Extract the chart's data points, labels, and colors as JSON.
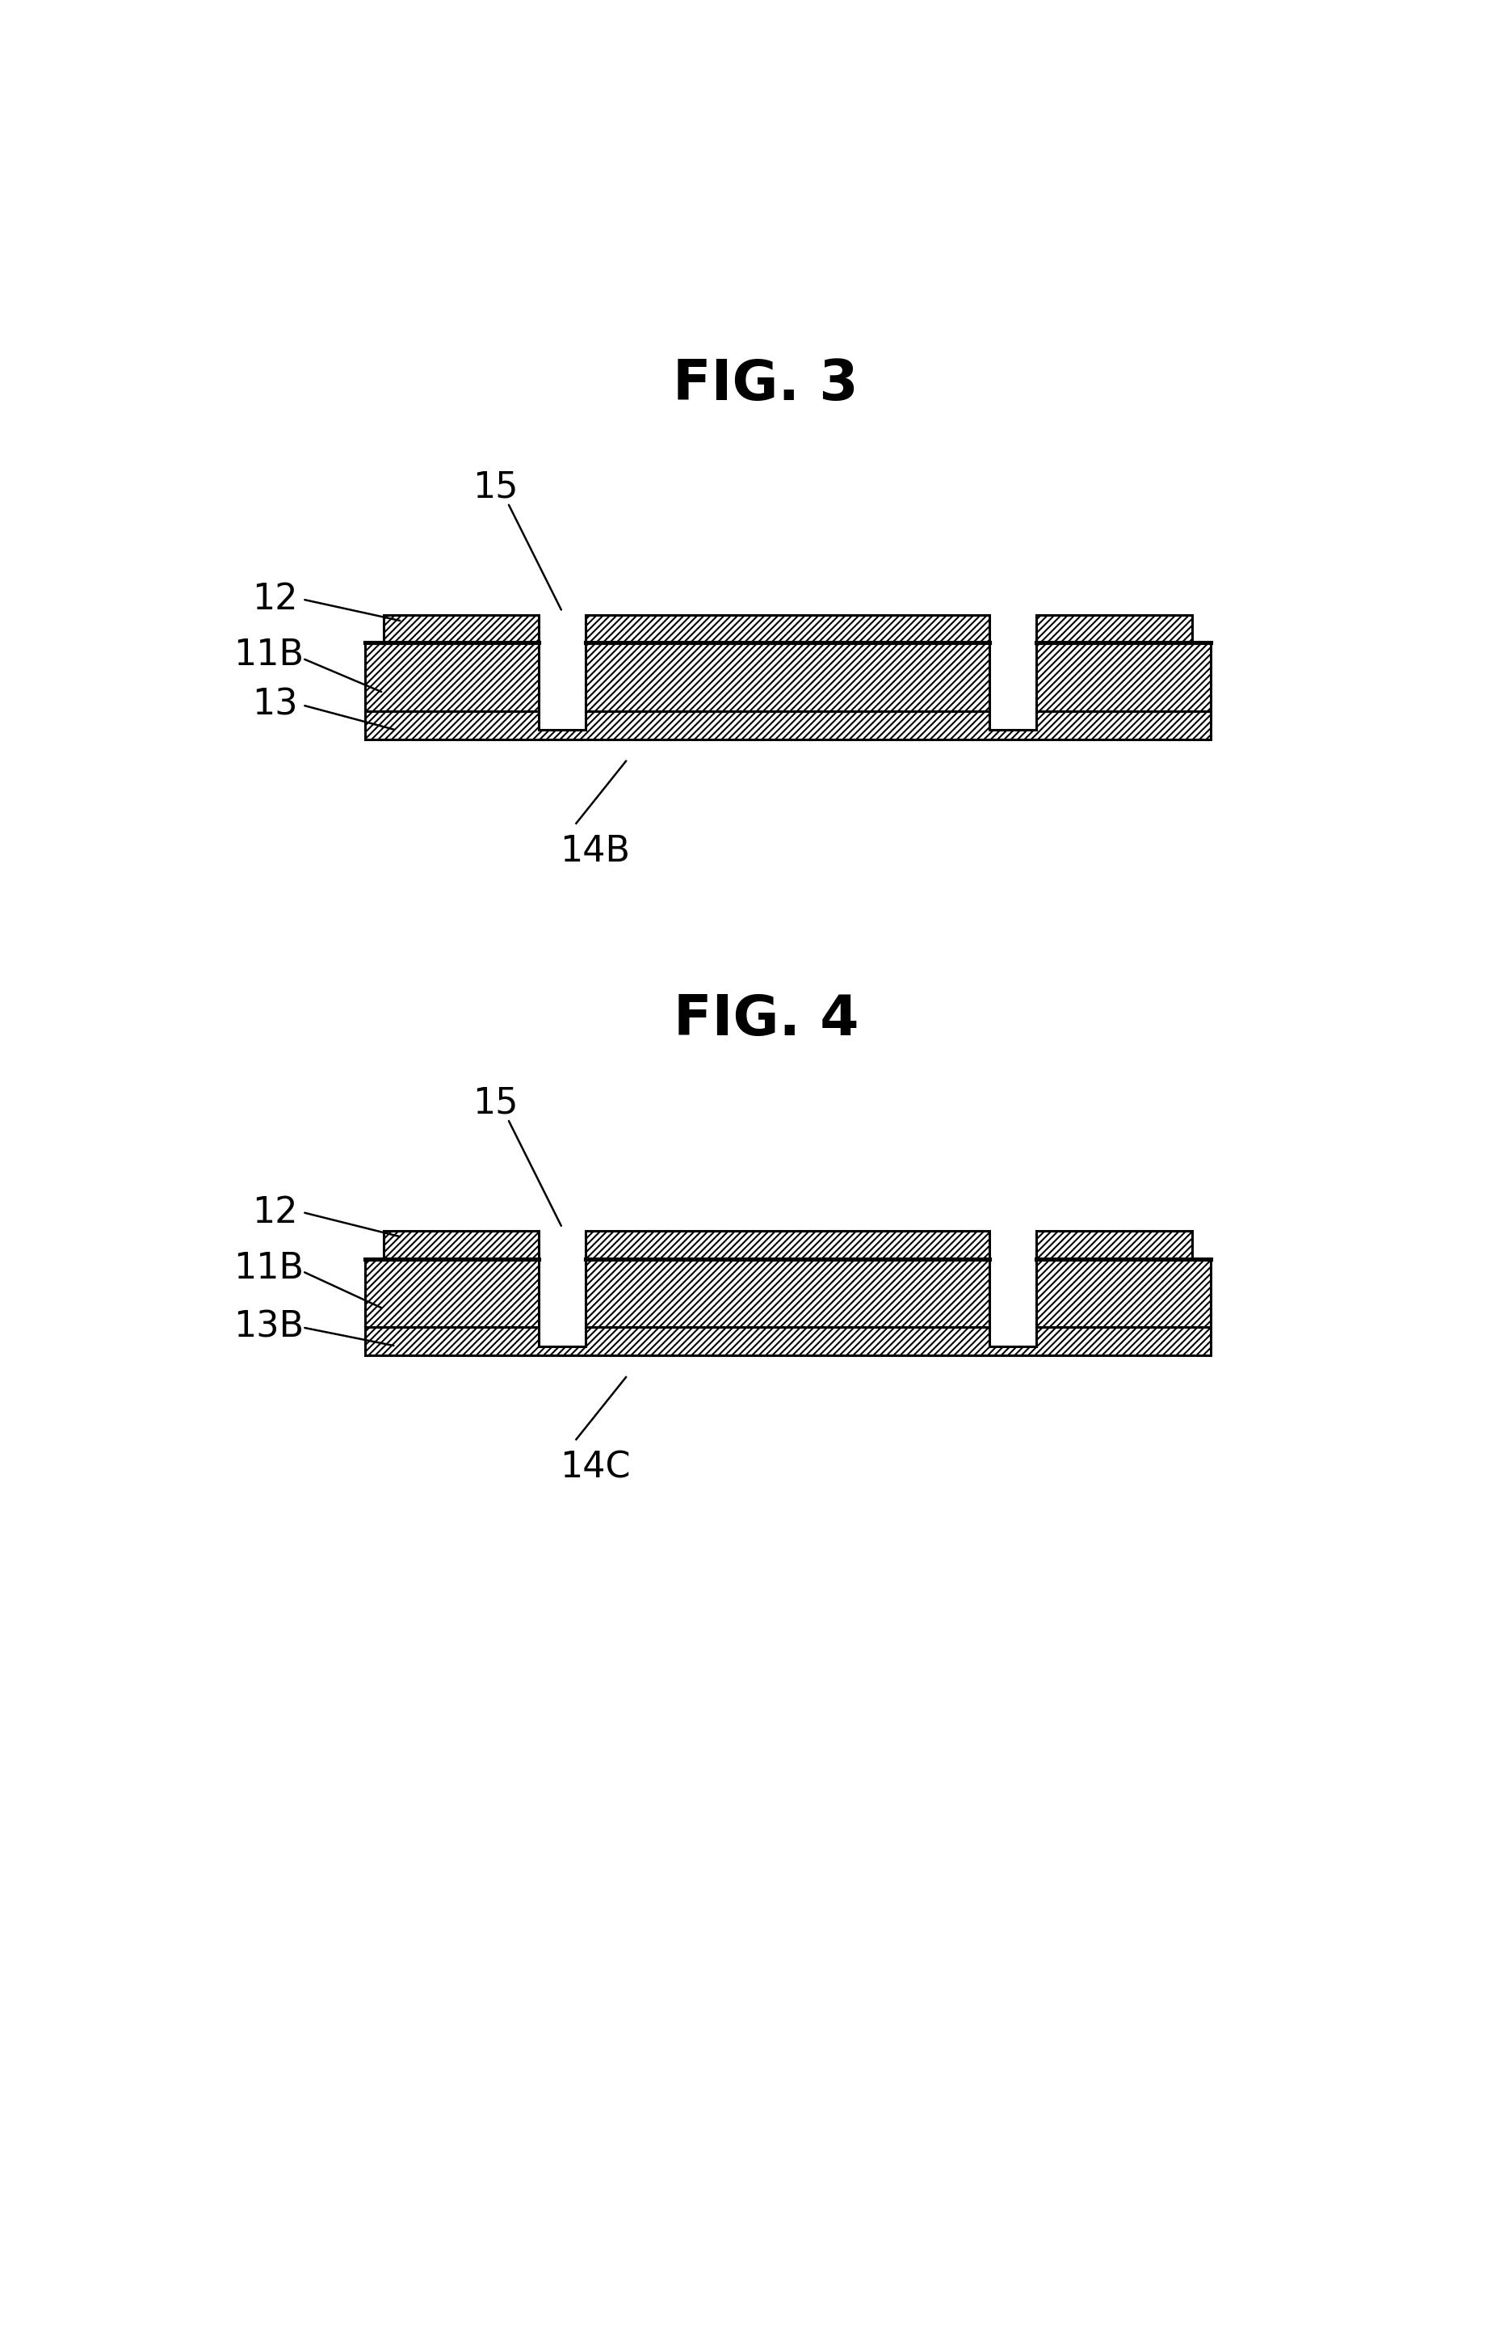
{
  "fig_title1": "FIG. 3",
  "fig_title2": "FIG. 4",
  "background_color": "#ffffff",
  "line_color": "#000000",
  "title_fontsize": 50,
  "label_fontsize": 32,
  "fig3_label_14B": "14B",
  "fig4_label_14C": "14C",
  "label_15": "15",
  "label_12": "12",
  "label_11B": "11B",
  "label_13": "13",
  "label_13B": "13B",
  "hatch": "////"
}
